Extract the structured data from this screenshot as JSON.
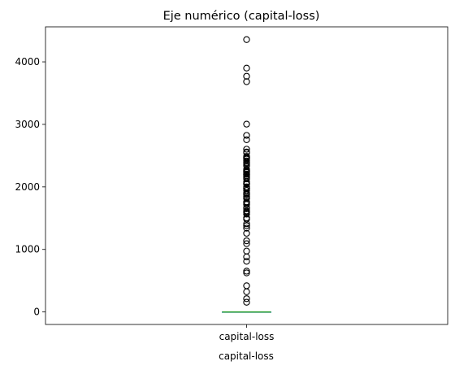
{
  "chart_data": {
    "type": "box",
    "title": "Eje numérico (capital-loss)",
    "xlabel": "capital-loss",
    "categories": [
      "capital-loss"
    ],
    "ylim": [
      -200,
      4560
    ],
    "yticks": [
      0,
      1000,
      2000,
      3000,
      4000
    ],
    "grid": false,
    "series": [
      {
        "category": "capital-loss",
        "box": {
          "q1": 0,
          "median": 0,
          "q3": 0,
          "whisker_low": 0,
          "whisker_high": 0
        },
        "median_color": "#2ca02c",
        "outliers": [
          155,
          213,
          323,
          419,
          625,
          653,
          810,
          880,
          974,
          1092,
          1138,
          1258,
          1340,
          1380,
          1411,
          1485,
          1504,
          1564,
          1590,
          1602,
          1617,
          1651,
          1668,
          1719,
          1740,
          1755,
          1762,
          1816,
          1825,
          1848,
          1876,
          1887,
          1902,
          1944,
          1974,
          1977,
          1980,
          2001,
          2042,
          2051,
          2057,
          2080,
          2129,
          2149,
          2174,
          2179,
          2201,
          2205,
          2206,
          2231,
          2238,
          2246,
          2258,
          2267,
          2282,
          2339,
          2352,
          2377,
          2392,
          2415,
          2444,
          2457,
          2467,
          2472,
          2489,
          2547,
          2559,
          2603,
          2754,
          2824,
          3004,
          3683,
          3770,
          3900,
          4356
        ]
      }
    ]
  }
}
